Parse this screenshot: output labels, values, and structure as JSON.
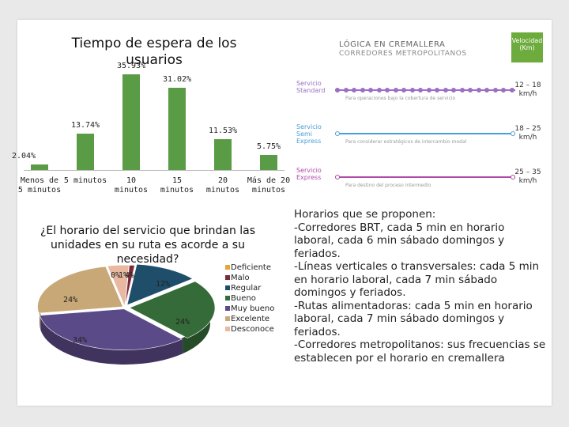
{
  "chart_data": [
    {
      "type": "bar",
      "title": "Tiempo de espera de los usuarios",
      "categories": [
        "Menos de 5 minutos",
        "5 minutos",
        "10 minutos",
        "15 minutos",
        "20 minutos",
        "Más de 20 minutos"
      ],
      "values": [
        2.04,
        13.74,
        35.93,
        31.02,
        11.53,
        5.75
      ],
      "value_labels": [
        "2.04%",
        "13.74%",
        "35.93%",
        "31.02%",
        "11.53%",
        "5.75%"
      ],
      "ylim": [
        0,
        40
      ],
      "color": "#5a9b46"
    },
    {
      "type": "pie",
      "title": "¿El horario del servicio que brindan las unidades en su ruta es acorde a su necesidad?",
      "labels": [
        "Deficiente",
        "Malo",
        "Regular",
        "Bueno",
        "Muy bueno",
        "Excelente",
        "Desconoce"
      ],
      "values": [
        0,
        1,
        12,
        24,
        34,
        24,
        4
      ],
      "colors": [
        "#e8a33a",
        "#7b2a3a",
        "#1f4e6b",
        "#356b38",
        "#5b4a88",
        "#c9a878",
        "#e8b8a0"
      ],
      "slice_labels": [
        "0%",
        "1%",
        "12%",
        "24%",
        "34%",
        "24%",
        "4%"
      ]
    }
  ],
  "info_graphic": {
    "title_line1": "LÓGICA EN CREMALLERA",
    "title_line2": "CORREDORES METROPOLITANOS",
    "speed_header": "Velocidad (Km)",
    "services": [
      {
        "name": "Servicio Standard",
        "desc": "Para operaciones bajo la cobertura de servicio",
        "speed": "12 – 18 km/h",
        "color": "#9b6fc1"
      },
      {
        "name": "Servicio Semi Express",
        "desc": "Para considerar estratégicos de intercambio modal",
        "speed": "18 – 25 km/h",
        "color": "#4a9fd4"
      },
      {
        "name": "Servicio Express",
        "desc": "Para destino del proceso intermedio",
        "speed": "25 – 35 km/h",
        "color": "#b04aa8"
      }
    ]
  },
  "right_text": "Horarios que se proponen:\n-Corredores BRT, cada 5 min en horario laboral, cada 6 min sábado domingos y feriados.\n-Líneas verticales o transversales: cada 5 min en horario laboral, cada 7 min sábado domingos y feriados.\n-Rutas alimentadoras: cada 5 min en horario laboral, cada 7 min sábado domingos y feriados.\n-Corredores metropolitanos: sus frecuencias se establecen por el horario en cremallera"
}
